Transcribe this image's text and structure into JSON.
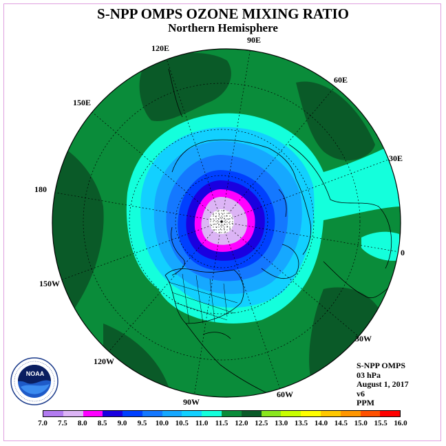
{
  "header": {
    "title": "S-NPP OMPS OZONE MIXING RATIO",
    "subtitle": "Northern Hemisphere"
  },
  "longitude_labels": [
    "90E",
    "60E",
    "30E",
    "0",
    "30W",
    "60W",
    "90W",
    "120W",
    "150W",
    "180",
    "150E",
    "120E"
  ],
  "info": {
    "instrument": "S-NPP OMPS",
    "level": "03 hPa",
    "date": "August 1, 2017",
    "version": "v6",
    "units": "PPM"
  },
  "colorbar": {
    "ticks": [
      "7.0",
      "7.5",
      "8.0",
      "8.5",
      "9.0",
      "9.5",
      "10.0",
      "10.5",
      "11.0",
      "11.5",
      "12.0",
      "12.5",
      "13.0",
      "13.5",
      "14.0",
      "14.5",
      "15.0",
      "15.5",
      "16.0"
    ],
    "colors": [
      "#b27bf0",
      "#dcb4f5",
      "#ff00ff",
      "#1a00e0",
      "#0040ff",
      "#1478ff",
      "#16a8ff",
      "#12d0ff",
      "#14ffdc",
      "#0a8c3a",
      "#0a5a28",
      "#8ae61e",
      "#c8ff00",
      "#ffff00",
      "#ffc800",
      "#ff9600",
      "#ff5000",
      "#ff0000",
      "#8b4a32"
    ]
  },
  "map_colors": {
    "background_field": "#0a8c3a",
    "dark_green": "#0a5a28",
    "band_11": "#14ffdc",
    "band_105": "#12d0ff",
    "band_10": "#16a8ff",
    "band_95": "#1478ff",
    "band_9": "#0040ff",
    "band_85": "#1a00e0",
    "band_8": "#ff00ff",
    "band_75": "#dcb4f5"
  }
}
